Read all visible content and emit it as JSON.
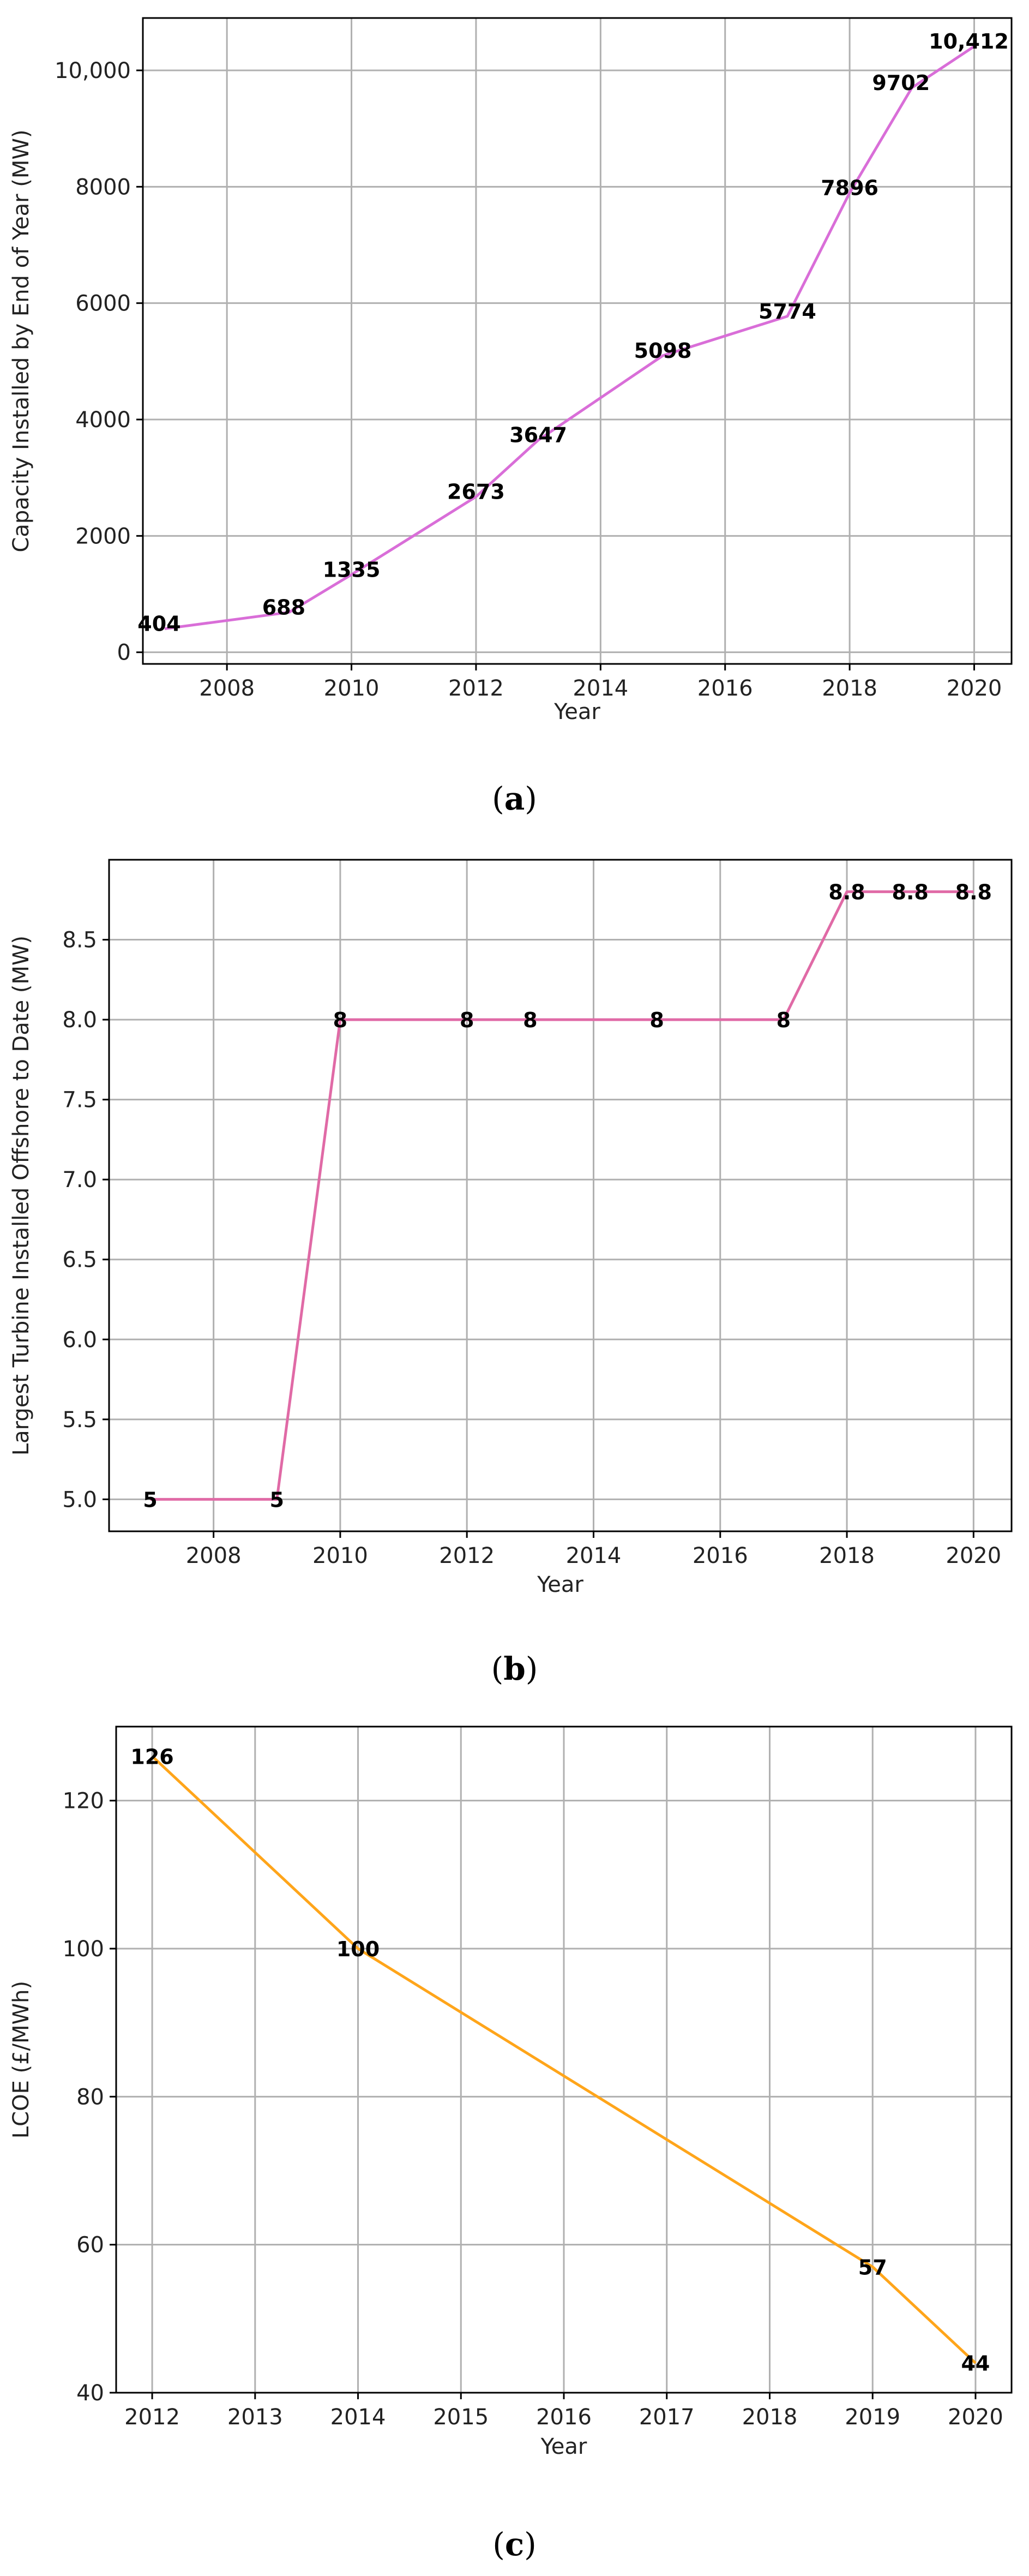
{
  "chart_data": [
    {
      "id": "a",
      "type": "line",
      "caption": "a",
      "xlabel": "Year",
      "ylabel": "Capacity Installed by End of Year (MW)",
      "x": [
        2007,
        2009,
        2010,
        2012,
        2013,
        2015,
        2017,
        2018,
        2019,
        2020
      ],
      "y": [
        404,
        688,
        1335,
        2673,
        3647,
        5098,
        5774,
        7896,
        9702,
        10412
      ],
      "data_labels": [
        "404",
        "688",
        "1335",
        "2673",
        "3647",
        "5098",
        "5774",
        "7896",
        "9702",
        "10,412"
      ],
      "xticks": [
        2008,
        2010,
        2012,
        2014,
        2016,
        2018,
        2020
      ],
      "xtick_labels": [
        "2008",
        "2010",
        "2012",
        "2014",
        "2016",
        "2018",
        "2020"
      ],
      "yticks": [
        0,
        2000,
        4000,
        6000,
        8000,
        10000
      ],
      "ytick_labels": [
        "0",
        "2000",
        "4000",
        "6000",
        "8000",
        "10,000"
      ],
      "xlim": [
        2006.65,
        2020.6
      ],
      "ylim": [
        -200,
        10900
      ],
      "color": "#d96ed8",
      "grid": true
    },
    {
      "id": "b",
      "type": "line",
      "caption": "b",
      "xlabel": "Year",
      "ylabel": "Largest Turbine Installed Offshore to Date (MW)",
      "x": [
        2007,
        2009,
        2010,
        2012,
        2013,
        2015,
        2017,
        2018,
        2019,
        2020
      ],
      "y": [
        5,
        5,
        8,
        8,
        8,
        8,
        8,
        8.8,
        8.8,
        8.8
      ],
      "data_labels": [
        "5",
        "5",
        "8",
        "8",
        "8",
        "8",
        "8",
        "8.8",
        "8.8",
        "8.8"
      ],
      "xticks": [
        2008,
        2010,
        2012,
        2014,
        2016,
        2018,
        2020
      ],
      "xtick_labels": [
        "2008",
        "2010",
        "2012",
        "2014",
        "2016",
        "2018",
        "2020"
      ],
      "yticks": [
        5.0,
        5.5,
        6.0,
        6.5,
        7.0,
        7.5,
        8.0,
        8.5
      ],
      "ytick_labels": [
        "5.0",
        "5.5",
        "6.0",
        "6.5",
        "7.0",
        "7.5",
        "8.0",
        "8.5"
      ],
      "xlim": [
        2006.35,
        2020.6
      ],
      "ylim": [
        4.8,
        9.0
      ],
      "color": "#e06aa6",
      "grid": true
    },
    {
      "id": "c",
      "type": "line",
      "caption": "c",
      "xlabel": "Year",
      "ylabel": "LCOE (£/MWh)",
      "x": [
        2012,
        2014,
        2019,
        2020
      ],
      "y": [
        126,
        100,
        57,
        44
      ],
      "data_labels": [
        "126",
        "100",
        "57",
        "44"
      ],
      "xticks": [
        2012,
        2013,
        2014,
        2015,
        2016,
        2017,
        2018,
        2019,
        2020
      ],
      "xtick_labels": [
        "2012",
        "2013",
        "2014",
        "2015",
        "2016",
        "2017",
        "2018",
        "2019",
        "2020"
      ],
      "yticks": [
        40,
        60,
        80,
        100,
        120
      ],
      "ytick_labels": [
        "40",
        "60",
        "80",
        "100",
        "120"
      ],
      "xlim": [
        2011.65,
        2020.35
      ],
      "ylim": [
        40,
        130
      ],
      "color": "#ffa51a",
      "grid": true
    }
  ]
}
